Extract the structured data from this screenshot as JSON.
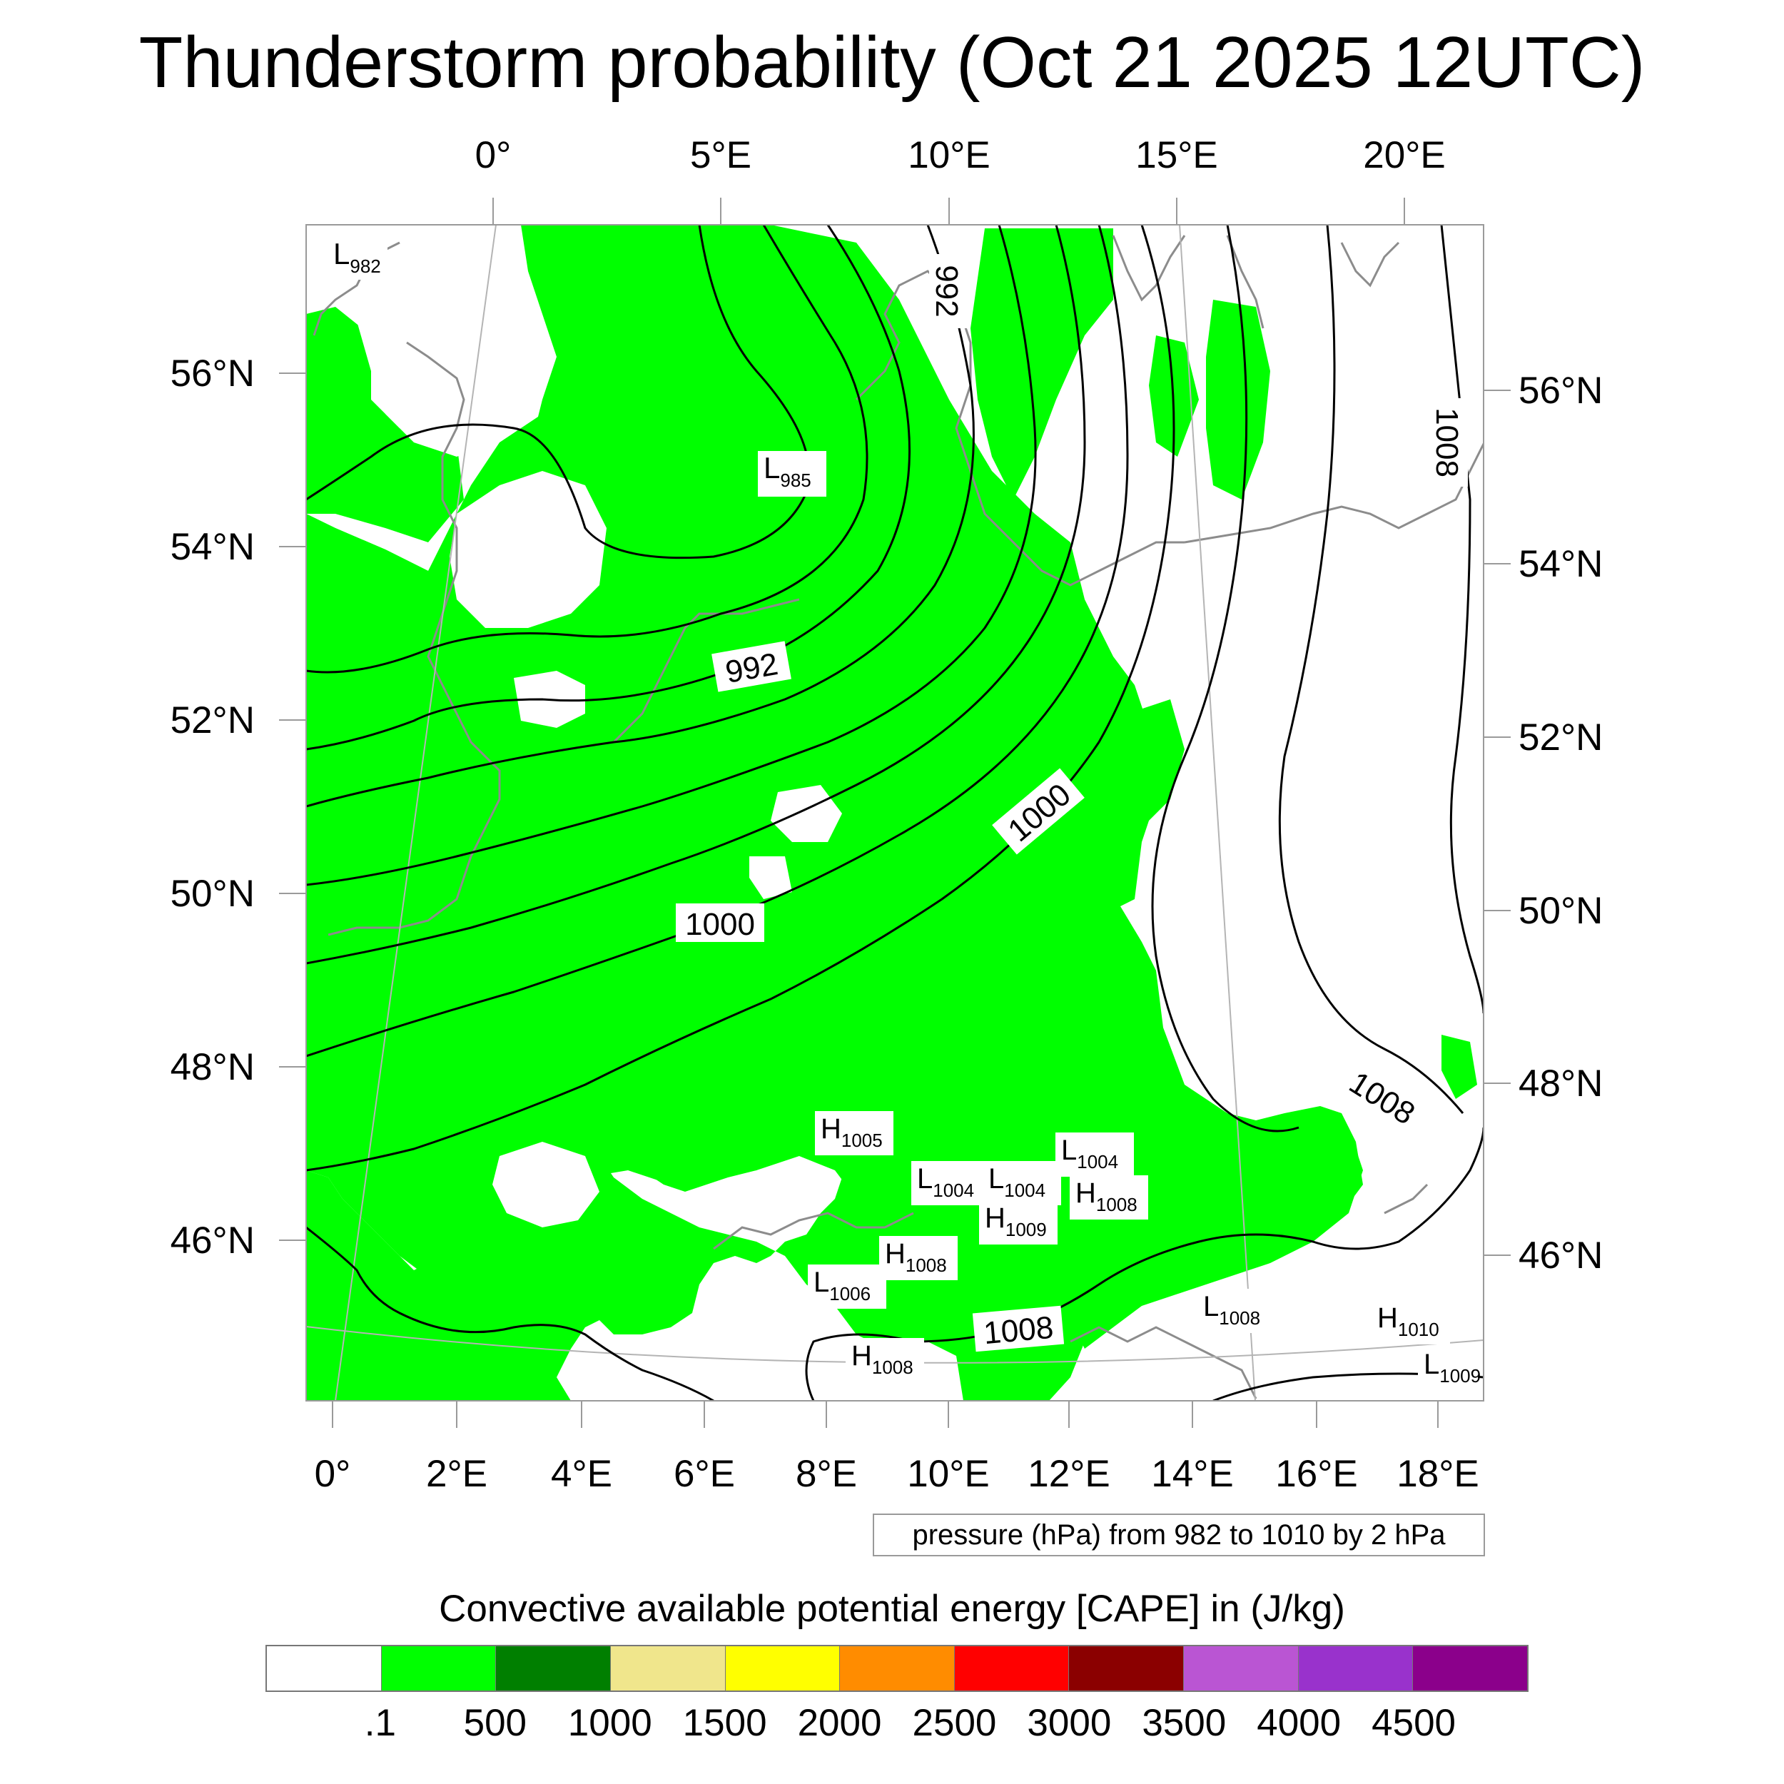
{
  "title": "Thunderstorm probability (Oct 21 2025 12UTC)",
  "colors": {
    "cape_fill": "#00ff00",
    "coastline": "#8c8c8c",
    "isobar": "#000000",
    "graticule": "#b4b4b4"
  },
  "axes": {
    "top_lon": [
      "0°",
      "5°E",
      "10°E",
      "15°E",
      "20°E"
    ],
    "bottom_lon": [
      "0°",
      "2°E",
      "4°E",
      "6°E",
      "8°E",
      "10°E",
      "12°E",
      "14°E",
      "16°E",
      "18°E"
    ],
    "left_lat": [
      "56°N",
      "54°N",
      "52°N",
      "50°N",
      "48°N",
      "46°N"
    ],
    "right_lat": [
      "56°N",
      "54°N",
      "52°N",
      "50°N",
      "48°N",
      "46°N"
    ]
  },
  "isobar_labels": [
    "992",
    "992",
    "1000",
    "1000",
    "1008",
    "1008",
    "1008"
  ],
  "pressure_centers": [
    {
      "type": "L",
      "value": "982"
    },
    {
      "type": "L",
      "value": "985"
    },
    {
      "type": "H",
      "value": "1005"
    },
    {
      "type": "L",
      "value": "1004"
    },
    {
      "type": "L",
      "value": "1004"
    },
    {
      "type": "L",
      "value": "1004"
    },
    {
      "type": "H",
      "value": "1008"
    },
    {
      "type": "H",
      "value": "1009"
    },
    {
      "type": "H",
      "value": "1008"
    },
    {
      "type": "L",
      "value": "1006"
    },
    {
      "type": "L",
      "value": "1008"
    },
    {
      "type": "H",
      "value": "1010"
    },
    {
      "type": "H",
      "value": "1008"
    },
    {
      "type": "L",
      "value": "1009"
    }
  ],
  "contour_info": "pressure (hPa) from 982 to 1010 by 2 hPa",
  "colorbar": {
    "title": "Convective available potential energy [CAPE] in (J/kg)",
    "colors": [
      "#ffffff",
      "#00ff00",
      "#007f00",
      "#f0e68c",
      "#ffff00",
      "#ff8c00",
      "#ff0000",
      "#8b0000",
      "#ba55d3",
      "#9932cc",
      "#8b008b"
    ],
    "labels": [
      ".1",
      "500",
      "1000",
      "1500",
      "2000",
      "2500",
      "3000",
      "3500",
      "4000",
      "4500"
    ]
  }
}
